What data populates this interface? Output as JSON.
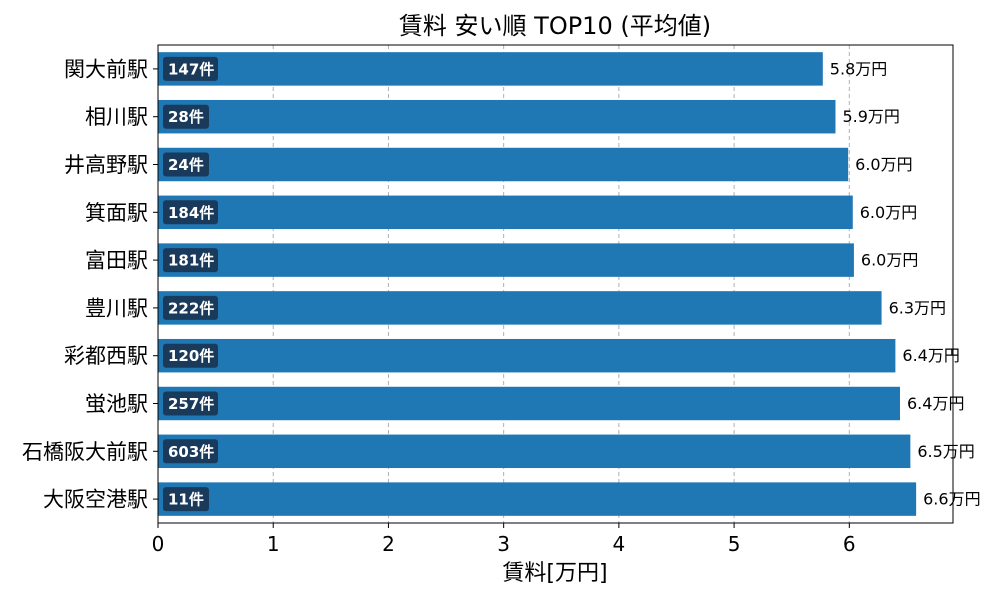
{
  "chart_data": {
    "type": "bar",
    "orientation": "horizontal",
    "title": "賃料 安い順 TOP10 (平均値)",
    "xlabel": "賃料[万円]",
    "ylabel": "",
    "xlim": [
      0,
      6.9
    ],
    "xticks": [
      "0",
      "1",
      "2",
      "3",
      "4",
      "5",
      "6"
    ],
    "grid": "x-dashed",
    "bar_color": "#1f77b4",
    "count_badge_color": "#1a3a5c",
    "categories": [
      "関大前駅",
      "相川駅",
      "井高野駅",
      "箕面駅",
      "富田駅",
      "豊川駅",
      "彩都西駅",
      "蛍池駅",
      "石橋阪大前駅",
      "大阪空港駅"
    ],
    "values": [
      5.77,
      5.88,
      5.99,
      6.03,
      6.04,
      6.28,
      6.4,
      6.44,
      6.53,
      6.58
    ],
    "value_labels": [
      "5.8万円",
      "5.9万円",
      "6.0万円",
      "6.0万円",
      "6.0万円",
      "6.3万円",
      "6.4万円",
      "6.4万円",
      "6.5万円",
      "6.6万円"
    ],
    "counts": [
      "147件",
      "28件",
      "24件",
      "184件",
      "181件",
      "222件",
      "120件",
      "257件",
      "603件",
      "11件"
    ]
  }
}
